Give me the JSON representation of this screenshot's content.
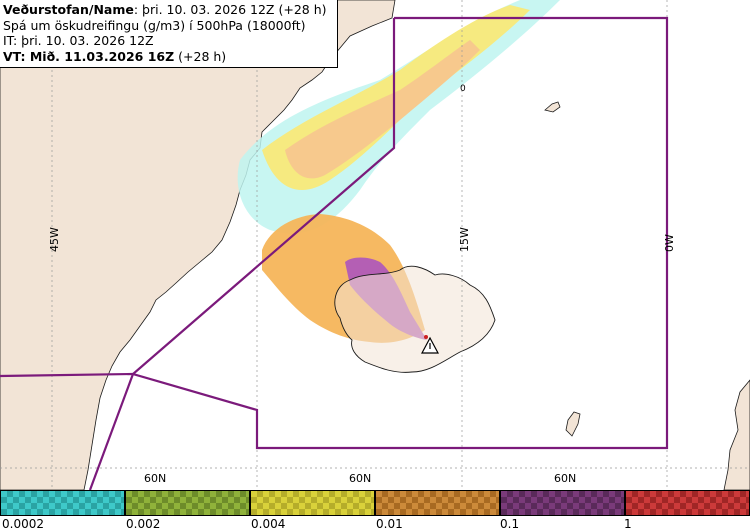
{
  "header": {
    "line1_bold": "Veðurstofan/Name",
    "line1_rest": ": þri. 10. 03. 2026 12Z (+28 h)",
    "line2": "Spá um öskudreifingu (g/m3) í 500hPa (18000ft)",
    "line3": "IT: þri. 10. 03. 2026 12Z",
    "line4": "VT: Mið. 11.03.2026 16Z",
    "line4_rest": " (+28 h)"
  },
  "map": {
    "lon_labels": [
      "45W",
      "15W",
      "0W"
    ],
    "lat_labels": [
      "60N",
      "60N",
      "60N"
    ],
    "contour_label": "0",
    "colors": {
      "ocean": "#ffffff",
      "land": "#f2e4d6",
      "boundary": "#7b1a7b",
      "grid": "#999999",
      "ash_orange": "#f6b55a",
      "ash_purple": "#b05ab8",
      "ash_yellow": "#f5e76a",
      "ash_cyan": "#bff5f0"
    },
    "icon": "volcano-warning-icon"
  },
  "legend": {
    "ticks": [
      "0.0002",
      "0.002",
      "0.004",
      "0.01",
      "0.1",
      "1"
    ],
    "swatches": [
      {
        "color": "#3ec9c9",
        "alt": "#2aa3a3"
      },
      {
        "color": "#8fb23a",
        "alt": "#6d8c2a"
      },
      {
        "color": "#d9d13a",
        "alt": "#b5ad2a"
      },
      {
        "color": "#cc8a3a",
        "alt": "#a86a22"
      },
      {
        "color": "#7a3a7a",
        "alt": "#5a2a5a"
      },
      {
        "color": "#cc3a3a",
        "alt": "#a02626"
      }
    ]
  }
}
